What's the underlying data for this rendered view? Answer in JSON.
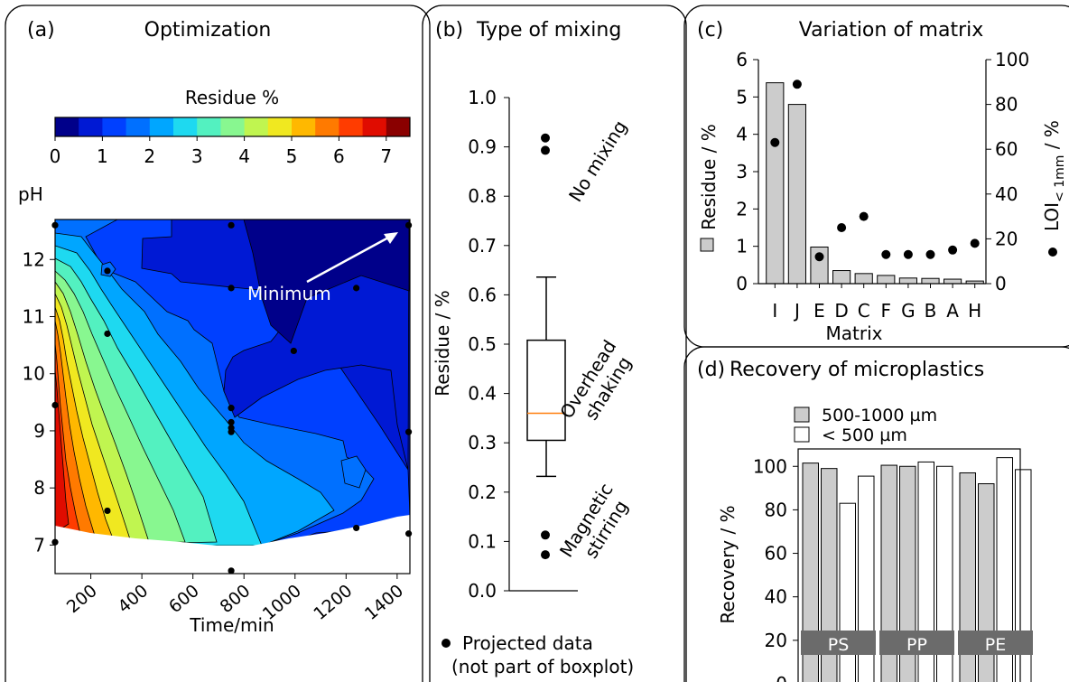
{
  "chart_data": [
    {
      "panel": "(a)",
      "type": "heatmap",
      "title": "Optimization",
      "xlabel": "Time/min",
      "ylabel": "pH",
      "xlim": [
        60,
        1450
      ],
      "ylim": [
        6.5,
        12.7
      ],
      "xticks": [
        200,
        400,
        600,
        800,
        1000,
        1200,
        1400
      ],
      "yticks": [
        7,
        8,
        9,
        10,
        11,
        12
      ],
      "colorbar": {
        "label": "Residue %",
        "ticks": [
          0,
          1,
          2,
          3,
          4,
          5,
          6,
          7
        ],
        "range": [
          0,
          7.5
        ],
        "colors": [
          "#00008a",
          "#0019d4",
          "#0040ff",
          "#0070ff",
          "#00a6ff",
          "#1ed9f0",
          "#53f1c0",
          "#88f790",
          "#c0f550",
          "#f0e820",
          "#ffb800",
          "#ff7a00",
          "#ff3c00",
          "#e00c00",
          "#8a0000"
        ]
      },
      "annotation": "Minimum",
      "points": [
        {
          "x": 60,
          "y": 12.6
        },
        {
          "x": 60,
          "y": 9.45
        },
        {
          "x": 60,
          "y": 7.05
        },
        {
          "x": 265,
          "y": 11.8
        },
        {
          "x": 265,
          "y": 10.7
        },
        {
          "x": 265,
          "y": 7.6
        },
        {
          "x": 750,
          "y": 12.6
        },
        {
          "x": 750,
          "y": 11.5
        },
        {
          "x": 750,
          "y": 9.4
        },
        {
          "x": 750,
          "y": 9.15
        },
        {
          "x": 750,
          "y": 9.05
        },
        {
          "x": 750,
          "y": 8.98
        },
        {
          "x": 750,
          "y": 6.55
        },
        {
          "x": 995,
          "y": 10.4
        },
        {
          "x": 1240,
          "y": 11.5
        },
        {
          "x": 1240,
          "y": 7.3
        },
        {
          "x": 1445,
          "y": 12.6
        },
        {
          "x": 1445,
          "y": 8.98
        },
        {
          "x": 1445,
          "y": 7.2
        }
      ]
    },
    {
      "panel": "(b)",
      "type": "box",
      "title": "Type of mixing",
      "ylabel": "Residue / %",
      "ylim": [
        0,
        1.0
      ],
      "yticks": [
        "0.0",
        "0.1",
        "0.2",
        "0.3",
        "0.4",
        "0.5",
        "0.6",
        "0.7",
        "0.8",
        "0.9",
        "1.0"
      ],
      "box": {
        "whisker_low": 0.232,
        "q1": 0.305,
        "median": 0.36,
        "q3": 0.508,
        "whisker_high": 0.636
      },
      "projected": [
        {
          "label": "No mixing",
          "values": [
            0.918,
            0.893
          ]
        },
        {
          "label": "Overhead\nshaking",
          "values": []
        },
        {
          "label": "Magnetic\nstirring",
          "values": [
            0.113,
            0.073
          ]
        }
      ],
      "legend_line1": "Projected data",
      "legend_line2": "(not part of boxplot)"
    },
    {
      "panel": "(c)",
      "type": "bar",
      "title": "Variation of matrix",
      "xlabel": "Matrix",
      "ylabel": "Residue / %",
      "y2label_main": "LOI",
      "y2label_sub": "< 1mm",
      "y2label_suffix": " / %",
      "categories": [
        "I",
        "J",
        "E",
        "D",
        "C",
        "F",
        "G",
        "B",
        "A",
        "H"
      ],
      "residue": [
        5.38,
        4.8,
        0.98,
        0.35,
        0.27,
        0.22,
        0.15,
        0.14,
        0.12,
        0.07
      ],
      "loi": [
        63,
        89,
        12,
        25,
        30,
        13,
        13,
        13,
        15,
        18
      ],
      "ylim": [
        0,
        6
      ],
      "y2lim": [
        0,
        100
      ],
      "yticks": [
        0,
        1,
        2,
        3,
        4,
        5,
        6
      ],
      "y2ticks": [
        0,
        20,
        40,
        60,
        80,
        100
      ]
    },
    {
      "panel": "(d)",
      "type": "bar",
      "title": "Recovery of microplastics",
      "ylabel": "Recovery / %",
      "ylim": [
        0,
        108
      ],
      "yticks": [
        0,
        20,
        40,
        60,
        80,
        100
      ],
      "legend": [
        "500-1000 µm",
        "< 500 µm"
      ],
      "groups": [
        {
          "label": "PS",
          "large": [
            101.5,
            99.0
          ],
          "small": [
            83.0,
            95.5
          ]
        },
        {
          "label": "PP",
          "large": [
            100.5,
            100.0
          ],
          "small": [
            102.0,
            100.0
          ]
        },
        {
          "label": "PE",
          "large": [
            97.0,
            92.0
          ],
          "small": [
            104.0,
            98.5
          ]
        }
      ]
    }
  ]
}
